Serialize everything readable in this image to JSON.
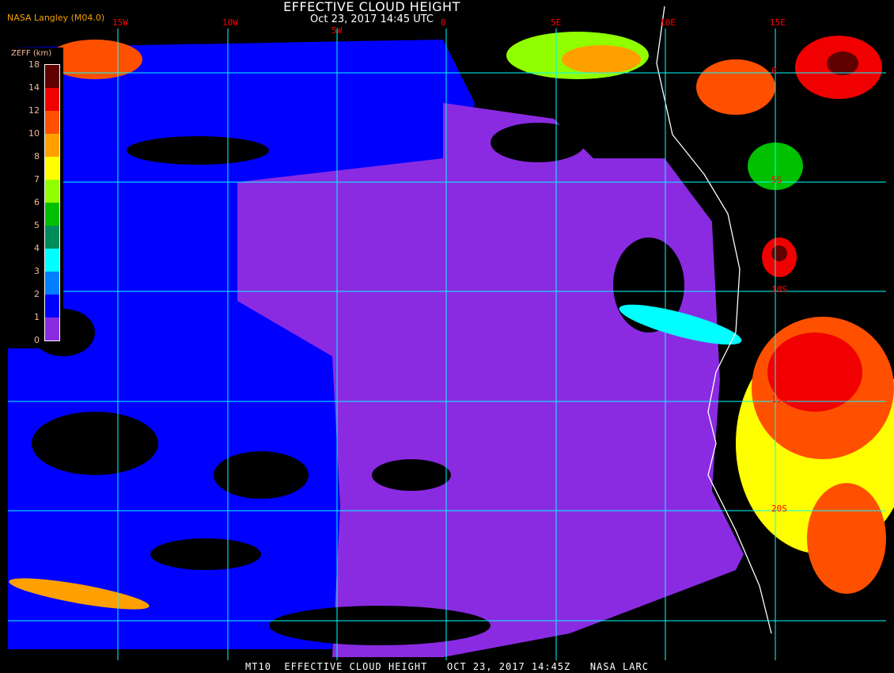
{
  "header": {
    "title": "EFFECTIVE CLOUD HEIGHT",
    "datetime": "Oct 23, 2017 14:45 UTC",
    "brand": "NASA Langley (M04.0)"
  },
  "grid": {
    "longitudes": [
      "15W",
      "10W",
      "5W",
      "0",
      "5E",
      "10E",
      "15E"
    ],
    "latitudes": [
      "0",
      "5S",
      "10S",
      "15S",
      "20S"
    ],
    "grid_color": "#00ffff",
    "label_color": "#ff0000",
    "coastline_color": "#ffffff"
  },
  "legend": {
    "title": "ZEFF (km)",
    "ticks": [
      "18",
      "14",
      "12",
      "10",
      "8",
      "7",
      "6",
      "5",
      "4",
      "3",
      "2",
      "1",
      "0"
    ],
    "colors": [
      "#600000",
      "#f00000",
      "#ff5000",
      "#ffa000",
      "#ffff00",
      "#90ff00",
      "#00c000",
      "#008c5a",
      "#00ffff",
      "#0080ff",
      "#0000ff",
      "#8a2be2"
    ]
  },
  "footer": {
    "text": "MT10  EFFECTIVE CLOUD HEIGHT   OCT 23, 2017 14:45Z   NASA LARC"
  }
}
